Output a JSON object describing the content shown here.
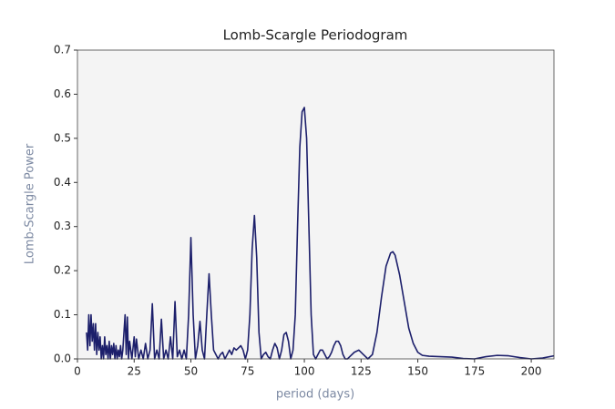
{
  "chart_data": {
    "type": "line",
    "title": "Lomb-Scargle Periodogram",
    "xlabel": "period (days)",
    "ylabel": "Lomb-Scargle Power",
    "color": "#1c1f6b",
    "background": "#f4f4f4",
    "label_color": "#7d8aa3",
    "xlim": [
      0,
      210
    ],
    "xticks": [
      0,
      25,
      50,
      75,
      100,
      125,
      150,
      175,
      200
    ],
    "ylim": [
      0,
      0.7
    ],
    "yticks": [
      {
        "value": 0,
        "label": "0.0"
      },
      0.1,
      0.2,
      0.3,
      0.4,
      0.5,
      0.6,
      0.7
    ],
    "x": [
      4,
      4.5,
      5,
      5.5,
      6,
      6.5,
      7,
      7.5,
      8,
      8.5,
      9,
      9.5,
      10,
      10.5,
      11,
      11.5,
      12,
      12.5,
      13,
      13.5,
      14,
      14.5,
      15,
      15.5,
      16,
      16.5,
      17,
      17.5,
      18,
      18.5,
      19,
      19.5,
      20,
      21,
      21.5,
      22,
      22.5,
      23,
      24,
      25,
      25.5,
      26,
      27,
      28,
      29,
      30,
      31,
      32,
      33,
      34,
      35,
      36,
      37,
      38,
      39,
      40,
      41,
      42,
      43,
      44,
      45,
      46,
      47,
      48,
      49,
      50,
      51,
      52,
      53,
      54,
      55,
      56,
      57,
      58,
      59,
      60,
      61,
      62,
      63,
      64,
      65,
      66,
      67,
      68,
      69,
      70,
      71,
      72,
      73,
      74,
      75,
      76,
      77,
      78,
      79,
      80,
      81,
      82,
      83,
      84,
      85,
      86,
      87,
      88,
      89,
      90,
      91,
      92,
      93,
      94,
      95,
      96,
      97,
      98,
      99,
      100,
      101,
      102,
      103,
      104,
      105,
      106,
      107,
      108,
      109,
      110,
      111,
      112,
      113,
      114,
      115,
      116,
      117,
      118,
      119,
      120,
      122,
      124,
      126,
      128,
      130,
      132,
      134,
      136,
      138,
      139,
      140,
      142,
      144,
      146,
      148,
      150,
      152,
      155,
      160,
      165,
      170,
      175,
      180,
      185,
      190,
      195,
      200,
      205,
      210
    ],
    "values": [
      0.06,
      0.02,
      0.1,
      0.03,
      0.1,
      0.04,
      0.08,
      0.02,
      0.08,
      0.01,
      0.06,
      0.02,
      0.05,
      0.0,
      0.03,
      0.0,
      0.05,
      0.01,
      0.03,
      0.0,
      0.04,
      0.0,
      0.03,
      0.01,
      0.035,
      0.0,
      0.03,
      0.0,
      0.02,
      0.005,
      0.03,
      0.0,
      0.02,
      0.1,
      0.01,
      0.095,
      0.0,
      0.04,
      0.0,
      0.05,
      0.005,
      0.045,
      0.0,
      0.02,
      0.0,
      0.035,
      0.0,
      0.02,
      0.125,
      0.0,
      0.02,
      0.0,
      0.09,
      0.0,
      0.02,
      0.0,
      0.05,
      0.0,
      0.13,
      0.005,
      0.02,
      0.0,
      0.02,
      0.0,
      0.1,
      0.275,
      0.1,
      0.0,
      0.03,
      0.085,
      0.02,
      0.0,
      0.1,
      0.193,
      0.1,
      0.02,
      0.01,
      0.0,
      0.01,
      0.015,
      0.0,
      0.01,
      0.02,
      0.01,
      0.025,
      0.02,
      0.025,
      0.03,
      0.02,
      0.0,
      0.02,
      0.1,
      0.25,
      0.325,
      0.23,
      0.06,
      0.0,
      0.01,
      0.015,
      0.005,
      0.0,
      0.02,
      0.035,
      0.025,
      0.0,
      0.02,
      0.055,
      0.06,
      0.04,
      0.0,
      0.02,
      0.1,
      0.3,
      0.48,
      0.56,
      0.57,
      0.5,
      0.3,
      0.1,
      0.01,
      0.0,
      0.01,
      0.02,
      0.02,
      0.01,
      0.0,
      0.005,
      0.015,
      0.03,
      0.04,
      0.04,
      0.03,
      0.01,
      0.0,
      0.0,
      0.005,
      0.015,
      0.02,
      0.01,
      0.0,
      0.01,
      0.06,
      0.14,
      0.21,
      0.24,
      0.243,
      0.235,
      0.19,
      0.13,
      0.07,
      0.035,
      0.015,
      0.008,
      0.006,
      0.005,
      0.004,
      0.001,
      0.0,
      0.005,
      0.008,
      0.007,
      0.003,
      0.0,
      0.002,
      0.007
    ]
  }
}
